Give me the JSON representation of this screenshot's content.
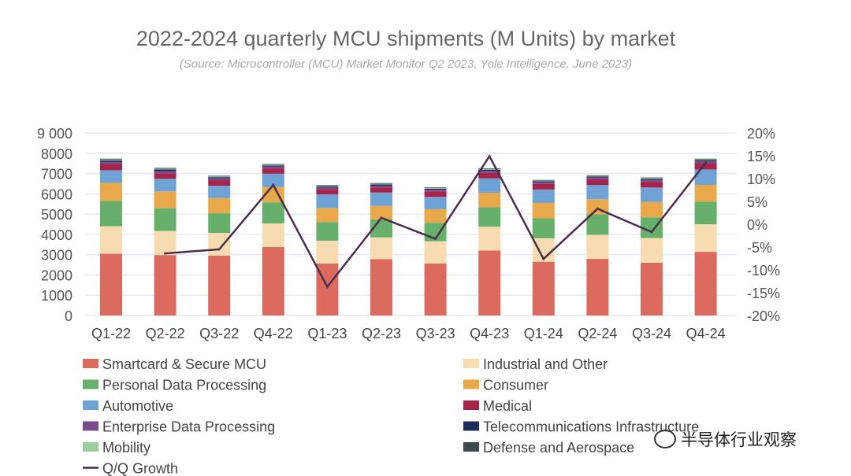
{
  "chart_data": {
    "type": "bar",
    "stacked": true,
    "title": "2022-2024 quarterly MCU shipments (M Units) by market",
    "subtitle": "(Source: Microcontroller (MCU) Market Monitor Q2 2023, Yole Intelligence, June 2023)",
    "categories": [
      "Q1-22",
      "Q2-22",
      "Q3-22",
      "Q4-22",
      "Q1-23",
      "Q2-23",
      "Q3-23",
      "Q4-23",
      "Q1-24",
      "Q2-24",
      "Q3-24",
      "Q4-24"
    ],
    "ylim": [
      0,
      9000
    ],
    "yticks": [
      "0",
      "1000",
      "2000",
      "3000",
      "4000",
      "5000",
      "6000",
      "7000",
      "8000",
      "9 000"
    ],
    "y2lim": [
      -20,
      20
    ],
    "y2ticks": [
      "-20%",
      "-15%",
      "-10%",
      "-5%",
      "0%",
      "5%",
      "10%",
      "15%",
      "20%"
    ],
    "grid": true,
    "legend_placement": "bottom",
    "series": [
      {
        "name": "Smartcard & Secure MCU",
        "color": "#dd6a5e",
        "values": [
          3050,
          2980,
          2950,
          3380,
          2560,
          2780,
          2560,
          3200,
          2650,
          2790,
          2600,
          3140
        ]
      },
      {
        "name": "Industrial and Other",
        "color": "#f6dcb0",
        "values": [
          1350,
          1190,
          1120,
          1160,
          1130,
          1070,
          1100,
          1180,
          1160,
          1190,
          1220,
          1360
        ]
      },
      {
        "name": "Personal Data Processing",
        "color": "#67b06c",
        "values": [
          1250,
          1120,
          970,
          1040,
          920,
          890,
          910,
          960,
          980,
          1010,
          1020,
          1110
        ]
      },
      {
        "name": "Consumer",
        "color": "#e9a84a",
        "values": [
          890,
          830,
          750,
          760,
          690,
          660,
          670,
          710,
          760,
          740,
          760,
          830
        ]
      },
      {
        "name": "Automotive",
        "color": "#6fa3d6",
        "values": [
          620,
          620,
          610,
          650,
          670,
          660,
          610,
          710,
          660,
          710,
          710,
          760
        ]
      },
      {
        "name": "Medical",
        "color": "#a8234a",
        "values": [
          310,
          270,
          270,
          260,
          260,
          250,
          270,
          270,
          280,
          280,
          290,
          310
        ]
      },
      {
        "name": "Enterprise Data Processing",
        "color": "#7b4a8e",
        "values": [
          100,
          110,
          90,
          90,
          80,
          90,
          80,
          95,
          80,
          80,
          80,
          90
        ]
      },
      {
        "name": "Telecommunications Infrastructure",
        "color": "#1f2d5a",
        "values": [
          80,
          80,
          60,
          60,
          60,
          60,
          55,
          65,
          55,
          55,
          60,
          60
        ]
      },
      {
        "name": "Mobility",
        "color": "#9ccf9f",
        "values": [
          40,
          40,
          35,
          35,
          35,
          35,
          30,
          35,
          30,
          30,
          35,
          35
        ]
      },
      {
        "name": "Defense and Aerospace",
        "color": "#3f4a4a",
        "values": [
          40,
          40,
          35,
          35,
          30,
          35,
          30,
          35,
          30,
          30,
          30,
          35
        ]
      }
    ],
    "line_series": {
      "name": "Q/Q Growth",
      "color": "#4a2f4a",
      "axis": "right",
      "values": [
        null,
        -6.4,
        -5.5,
        8.6,
        -13.7,
        1.4,
        -3.2,
        14.9,
        -7.6,
        3.4,
        -1.7,
        13.5
      ]
    }
  },
  "watermark": "半导体行业观察"
}
